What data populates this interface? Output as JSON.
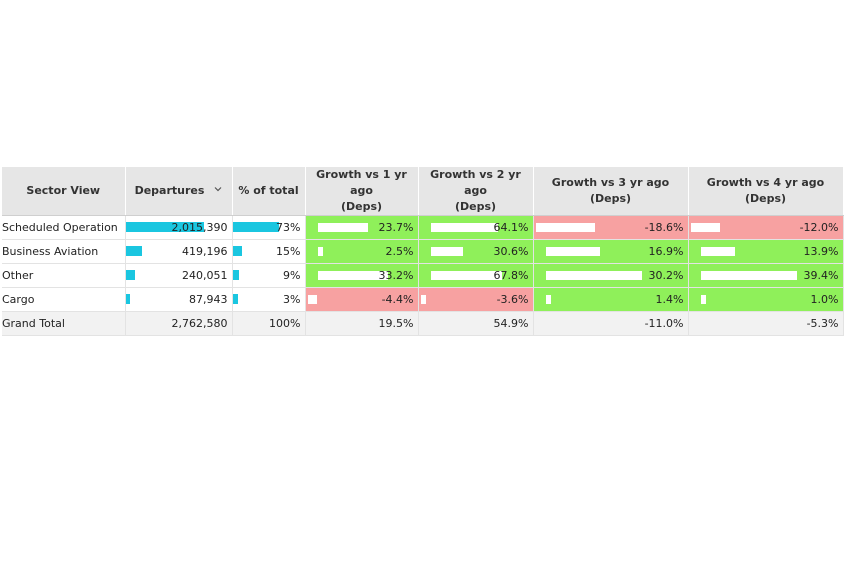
{
  "table": {
    "headers": {
      "sector": "Sector View",
      "departures": "Departures",
      "pct": "% of total",
      "g1": "Growth vs 1 yr ago",
      "g2": "Growth vs 2 yr ago",
      "g3": "Growth vs 3 yr ago",
      "g4": "Growth vs 4 yr ago",
      "deps": "(Deps)"
    },
    "sort_icon": "chevron-down-icon",
    "rows": [
      {
        "sector": "Scheduled Operation",
        "departures": "2,015,390",
        "departures_value": 2015390,
        "pct": "73%",
        "pct_value": 73,
        "g1": "23.7%",
        "g2": "64.1%",
        "g3": "-18.6%",
        "g4": "-12.0%",
        "g1_value": 23.7,
        "g2_value": 64.1,
        "g3_value": -18.6,
        "g4_value": -12.0
      },
      {
        "sector": "Business Aviation",
        "departures": "419,196",
        "departures_value": 419196,
        "pct": "15%",
        "pct_value": 15,
        "g1": "2.5%",
        "g2": "30.6%",
        "g3": "16.9%",
        "g4": "13.9%",
        "g1_value": 2.5,
        "g2_value": 30.6,
        "g3_value": 16.9,
        "g4_value": 13.9
      },
      {
        "sector": "Other",
        "departures": "240,051",
        "departures_value": 240051,
        "pct": "9%",
        "pct_value": 9,
        "g1": "33.2%",
        "g2": "67.8%",
        "g3": "30.2%",
        "g4": "39.4%",
        "g1_value": 33.2,
        "g2_value": 67.8,
        "g3_value": 30.2,
        "g4_value": 39.4
      },
      {
        "sector": "Cargo",
        "departures": "87,943",
        "departures_value": 87943,
        "pct": "3%",
        "pct_value": 3,
        "g1": "-4.4%",
        "g2": "-3.6%",
        "g3": "1.4%",
        "g4": "1.0%",
        "g1_value": -4.4,
        "g2_value": -3.6,
        "g3_value": 1.4,
        "g4_value": 1.0
      }
    ],
    "total": {
      "sector": "Grand Total",
      "departures": "2,762,580",
      "pct": "100%",
      "g1": "19.5%",
      "g2": "54.9%",
      "g3": "-11.0%",
      "g4": "-5.3%"
    },
    "colors": {
      "bar": "#1ac6e0",
      "positive": "#8ff05a",
      "negative": "#f7a1a1",
      "header": "#e6e6e6"
    }
  }
}
